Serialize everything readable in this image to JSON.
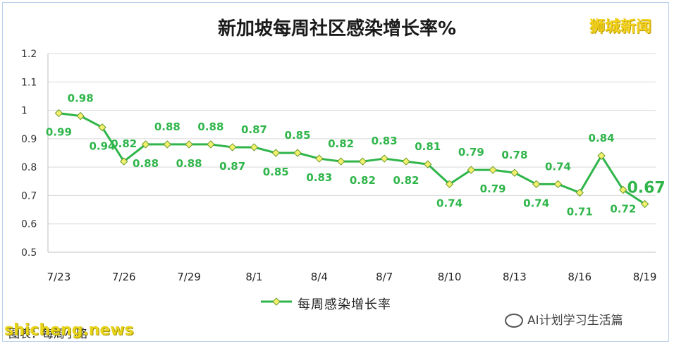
{
  "chart_data": {
    "type": "line",
    "title": "新加坡每周社区感染增长率%",
    "ylim": [
      0.5,
      1.2
    ],
    "yticks": [
      "0.5",
      "0.6",
      "0.7",
      "0.8",
      "0.9",
      "1",
      "1.1",
      "1.2"
    ],
    "tick_labels": [
      "7/23",
      "7/26",
      "7/29",
      "8/1",
      "8/4",
      "8/7",
      "8/10",
      "8/13",
      "8/16",
      "8/19"
    ],
    "x": [
      "7/23",
      "7/24",
      "7/25",
      "7/26",
      "7/27",
      "7/28",
      "7/29",
      "7/30",
      "7/31",
      "8/1",
      "8/2",
      "8/3",
      "8/4",
      "8/5",
      "8/6",
      "8/7",
      "8/8",
      "8/9",
      "8/10",
      "8/11",
      "8/12",
      "8/13",
      "8/14",
      "8/15",
      "8/16",
      "8/17",
      "8/18",
      "8/19"
    ],
    "series": [
      {
        "name": "每周感染增长率",
        "color": "#2fb54a",
        "marker_color": "#f3f06e",
        "values": [
          0.99,
          0.98,
          0.94,
          0.82,
          0.88,
          0.88,
          0.88,
          0.88,
          0.87,
          0.87,
          0.85,
          0.85,
          0.83,
          0.82,
          0.82,
          0.83,
          0.82,
          0.81,
          0.74,
          0.79,
          0.79,
          0.78,
          0.74,
          0.74,
          0.71,
          0.84,
          0.72,
          0.67
        ],
        "labels": [
          "0.99",
          "0.98",
          "0.94",
          "0.82",
          "0.88",
          "0.88",
          "0.88",
          "0.88",
          "0.87",
          "0.87",
          "0.85",
          "0.85",
          "0.83",
          "0.82",
          "0.82",
          "0.83",
          "0.82",
          "0.81",
          "0.74",
          "0.79",
          "0.79",
          "0.78",
          "0.74",
          "0.74",
          "0.71",
          "0.84",
          "0.72",
          "0.67"
        ]
      }
    ],
    "grid": true,
    "legend": "bottom"
  },
  "brand_text": "狮城新闻",
  "credit_text": "图表：每周小略",
  "site_watermark": "shicheng.news",
  "wechat_text": "AI计划学习生活篇"
}
